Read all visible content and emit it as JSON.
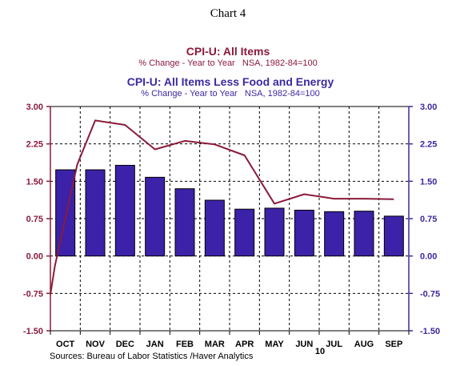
{
  "chart_data": {
    "type": "bar+line",
    "title": "Chart 4",
    "series": [
      {
        "name": "CPI-U: All Items",
        "subtitle": "% Change - Year to Year   NSA, 1982-84=100",
        "kind": "line",
        "color": "#8b1a3a",
        "x": [
          -0.5,
          -0.35,
          0.4,
          1.0,
          2.0,
          3.0,
          4.0,
          5.0,
          6.0,
          7.0,
          8.0,
          9.0,
          10.0,
          11.0
        ],
        "values": [
          -0.77,
          -0.2,
          1.84,
          2.72,
          2.63,
          2.14,
          2.31,
          2.24,
          2.02,
          1.05,
          1.24,
          1.15,
          1.15,
          1.14
        ]
      },
      {
        "name": "CPI-U: All Items Less Food and Energy",
        "subtitle": "% Change - Year to Year   NSA, 1982-84=100",
        "kind": "bar",
        "color": "#3b22a8",
        "values": [
          1.73,
          1.73,
          1.82,
          1.58,
          1.35,
          1.12,
          0.94,
          0.96,
          0.92,
          0.89,
          0.9,
          0.8
        ]
      }
    ],
    "categories": [
      "OCT",
      "NOV",
      "DEC",
      "JAN",
      "FEB",
      "MAR",
      "APR",
      "MAY",
      "JUN",
      "JUL",
      "AUG",
      "SEP"
    ],
    "year_label": "10",
    "ylim": [
      -1.5,
      3.0
    ],
    "yticks": [
      "3.00",
      "2.25",
      "1.50",
      "0.75",
      "0.00",
      "-0.75",
      "-1.50"
    ],
    "grid": true,
    "source": "Sources:  Bureau of Labor Statistics /Haver Analytics"
  }
}
